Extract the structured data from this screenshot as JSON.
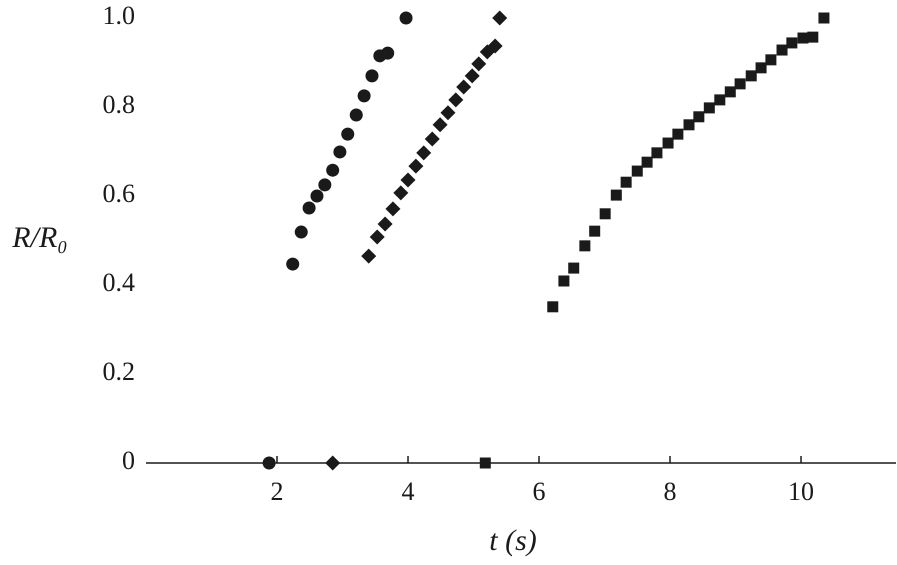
{
  "chart_data": {
    "type": "scatter",
    "x_label": "t (s)",
    "y_label": "R/R₀",
    "xlim": [
      0,
      11.45
    ],
    "ylim": [
      0,
      1
    ],
    "xticks": [
      2,
      4,
      6,
      8,
      10
    ],
    "yticks": [
      0,
      0.2,
      0.4,
      0.6,
      0.8,
      {
        "value": 1,
        "label": "1.0"
      }
    ],
    "series": [
      {
        "marker": "circle",
        "color": "#1a1a1a",
        "x": [
          1.88,
          2.24,
          2.37,
          2.49,
          2.61,
          2.73,
          2.85,
          2.96,
          3.08,
          3.21,
          3.33,
          3.45,
          3.57,
          3.69,
          3.97
        ],
        "values": [
          0,
          0.447,
          0.519,
          0.573,
          0.6,
          0.625,
          0.658,
          0.699,
          0.739,
          0.782,
          0.825,
          0.87,
          0.915,
          0.921,
          1.0
        ]
      },
      {
        "marker": "diamond",
        "color": "#1a1a1a",
        "x": [
          2.85,
          3.4,
          3.53,
          3.65,
          3.77,
          3.89,
          4.0,
          4.12,
          4.24,
          4.37,
          4.49,
          4.61,
          4.73,
          4.85,
          4.98,
          5.08,
          5.21,
          5.33,
          5.4
        ],
        "values": [
          0,
          0.465,
          0.508,
          0.537,
          0.571,
          0.607,
          0.636,
          0.667,
          0.697,
          0.728,
          0.76,
          0.787,
          0.816,
          0.845,
          0.87,
          0.897,
          0.924,
          0.937,
          1.0
        ]
      },
      {
        "marker": "square",
        "color": "#1a1a1a",
        "x": [
          5.18,
          6.21,
          6.38,
          6.53,
          6.7,
          6.85,
          7.01,
          7.18,
          7.33,
          7.5,
          7.65,
          7.8,
          7.97,
          8.12,
          8.29,
          8.44,
          8.6,
          8.76,
          8.92,
          9.07,
          9.24,
          9.39,
          9.54,
          9.71,
          9.86,
          10.03,
          10.18,
          10.35
        ],
        "values": [
          0,
          0.351,
          0.409,
          0.438,
          0.488,
          0.521,
          0.56,
          0.602,
          0.631,
          0.656,
          0.676,
          0.697,
          0.719,
          0.739,
          0.76,
          0.778,
          0.798,
          0.816,
          0.834,
          0.852,
          0.87,
          0.888,
          0.906,
          0.928,
          0.944,
          0.955,
          0.957,
          1.0
        ]
      }
    ]
  }
}
